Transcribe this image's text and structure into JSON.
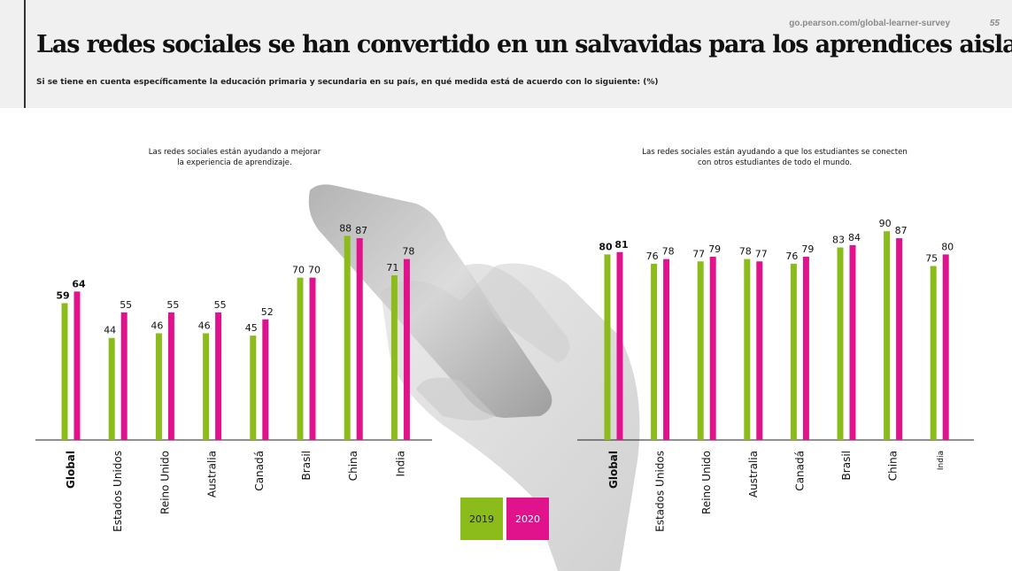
{
  "header": {
    "url": "go.pearson.com/global-learner-survey",
    "page_number": "55",
    "title": "Las redes sociales se han convertido en un salvavidas para los aprendices aislados",
    "subtitle": "Si se tiene en cuenta específicamente la educación primaria y secundaria en su país, en qué medida está de acuerdo con lo siguiente: (%)"
  },
  "legend": {
    "items": [
      {
        "label": "2019",
        "color": "#8cbc1b"
      },
      {
        "label": "2020",
        "color": "#e0138c"
      }
    ]
  },
  "chart_data": [
    {
      "type": "bar",
      "title": "Las redes sociales están ayudando a mejorar\nla experiencia de aprendizaje.",
      "categories": [
        "Global",
        "Estados Unidos",
        "Reino Unido",
        "Australia",
        "Canadá",
        "Brasil",
        "China",
        "India"
      ],
      "series": [
        {
          "name": "2019",
          "color": "#8cbc1b",
          "values": [
            59,
            44,
            46,
            46,
            45,
            70,
            88,
            71
          ]
        },
        {
          "name": "2020",
          "color": "#e0138c",
          "values": [
            64,
            55,
            55,
            55,
            52,
            70,
            87,
            78
          ]
        }
      ],
      "ylim": [
        0,
        100
      ],
      "grid": false
    },
    {
      "type": "bar",
      "title": "Las redes sociales están ayudando a que los estudiantes se conecten\ncon otros estudiantes de todo el mundo.",
      "categories": [
        "Global",
        "Estados Unidos",
        "Reino Unido",
        "Australia",
        "Canadá",
        "Brasil",
        "China",
        "India"
      ],
      "series": [
        {
          "name": "2019",
          "color": "#8cbc1b",
          "values": [
            80,
            76,
            77,
            78,
            76,
            83,
            90,
            75
          ]
        },
        {
          "name": "2020",
          "color": "#e0138c",
          "values": [
            81,
            78,
            79,
            77,
            79,
            84,
            87,
            80
          ]
        }
      ],
      "ylim": [
        0,
        100
      ],
      "grid": false
    }
  ]
}
